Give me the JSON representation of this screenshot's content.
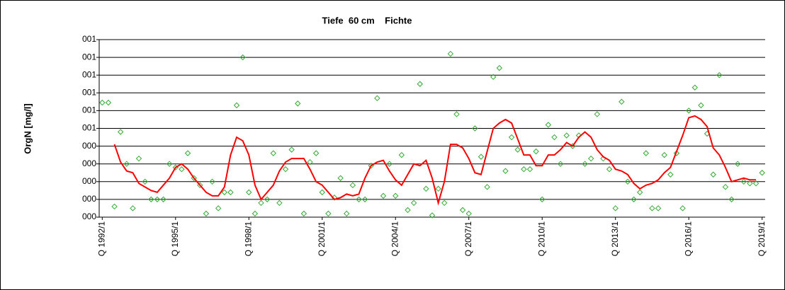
{
  "chart_data": {
    "type": "line",
    "title": "Tiefe  60 cm    Fichte",
    "y_label": "OrgN [mg/l]",
    "categories": [
      "Q 1992/1",
      null,
      null,
      null,
      null,
      null,
      null,
      null,
      null,
      null,
      null,
      null,
      "Q 1995/1",
      null,
      null,
      null,
      null,
      null,
      null,
      null,
      null,
      null,
      null,
      null,
      "Q 1998/1",
      null,
      null,
      null,
      null,
      null,
      null,
      null,
      null,
      null,
      null,
      null,
      "Q 2001/1",
      null,
      null,
      null,
      null,
      null,
      null,
      null,
      null,
      null,
      null,
      null,
      "Q 2004/1",
      null,
      null,
      null,
      null,
      null,
      null,
      null,
      null,
      null,
      null,
      null,
      "Q 2007/1",
      null,
      null,
      null,
      null,
      null,
      null,
      null,
      null,
      null,
      null,
      null,
      "Q 2010/1",
      null,
      null,
      null,
      null,
      null,
      null,
      null,
      null,
      null,
      null,
      null,
      "Q 2013/1",
      null,
      null,
      null,
      null,
      null,
      null,
      null,
      null,
      null,
      null,
      null,
      "Q 2016/1",
      null,
      null,
      null,
      null,
      null,
      null,
      null,
      null,
      null,
      null,
      null,
      "Q 2019/1"
    ],
    "series": [
      {
        "mode": "markers",
        "color": "#33aa33",
        "values": [
          0.645,
          0.645,
          0.06,
          0.48,
          0.3,
          0.05,
          0.33,
          0.2,
          0.1,
          0.1,
          0.1,
          0.3,
          0.28,
          0.27,
          0.36,
          0.22,
          0.18,
          0.02,
          0.2,
          0.05,
          0.14,
          0.14,
          0.63,
          0.9,
          0.14,
          0.02,
          0.08,
          0.1,
          0.36,
          0.08,
          0.27,
          0.38,
          0.64,
          0.02,
          0.31,
          0.36,
          0.14,
          0.02,
          0.11,
          0.22,
          0.02,
          0.18,
          0.1,
          0.1,
          0.29,
          0.67,
          0.12,
          0.3,
          0.12,
          0.35,
          0.04,
          0.08,
          0.75,
          0.16,
          0.01,
          0.16,
          0.08,
          0.92,
          0.58,
          0.04,
          0.02,
          0.5,
          0.34,
          0.17,
          0.79,
          0.84,
          0.26,
          0.45,
          0.38,
          0.27,
          0.27,
          0.37,
          0.1,
          0.52,
          0.45,
          0.3,
          0.46,
          0.4,
          0.46,
          0.3,
          0.33,
          0.58,
          0.33,
          0.27,
          0.05,
          0.65,
          0.2,
          0.1,
          0.14,
          0.36,
          0.05,
          0.05,
          0.35,
          0.24,
          0.36,
          0.05,
          0.6,
          0.73,
          0.63,
          0.47,
          0.24,
          0.8,
          0.17,
          0.1,
          0.3,
          0.2,
          0.19,
          0.19,
          0.25
        ]
      },
      {
        "mode": "line",
        "color": "#ff0000",
        "values": [
          null,
          null,
          0.41,
          0.31,
          0.26,
          0.25,
          0.19,
          0.17,
          0.15,
          0.14,
          0.18,
          0.22,
          0.28,
          0.3,
          0.27,
          0.22,
          0.18,
          0.14,
          0.12,
          0.12,
          0.17,
          0.35,
          0.45,
          0.43,
          0.35,
          0.18,
          0.1,
          0.14,
          0.18,
          0.26,
          0.31,
          0.33,
          0.33,
          0.33,
          0.27,
          0.2,
          0.18,
          0.14,
          0.1,
          0.11,
          0.13,
          0.12,
          0.13,
          0.22,
          0.29,
          0.31,
          0.32,
          0.26,
          0.21,
          0.18,
          0.24,
          0.3,
          0.29,
          0.32,
          0.22,
          0.08,
          0.2,
          0.41,
          0.41,
          0.39,
          0.33,
          0.25,
          0.24,
          0.37,
          0.5,
          0.53,
          0.55,
          0.53,
          0.44,
          0.35,
          0.35,
          0.29,
          0.29,
          0.35,
          0.35,
          0.38,
          0.42,
          0.4,
          0.45,
          0.48,
          0.45,
          0.38,
          0.34,
          0.32,
          0.27,
          0.26,
          0.24,
          0.19,
          0.16,
          0.18,
          0.19,
          0.21,
          0.25,
          0.28,
          0.37,
          0.46,
          0.56,
          0.57,
          0.55,
          0.51,
          0.39,
          0.35,
          0.28,
          0.2,
          0.21,
          0.22,
          0.21,
          0.21,
          null
        ]
      }
    ],
    "ylim": [
      0,
      1
    ],
    "yticks": [
      {
        "value": 0,
        "label": "000"
      },
      {
        "value": 0.1,
        "label": "000"
      },
      {
        "value": 0.2,
        "label": "000"
      },
      {
        "value": 0.3,
        "label": "000"
      },
      {
        "value": 0.4,
        "label": "000"
      },
      {
        "value": 0.5,
        "label": "001"
      },
      {
        "value": 0.6,
        "label": "001"
      },
      {
        "value": 0.7,
        "label": "001"
      },
      {
        "value": 0.8,
        "label": "001"
      },
      {
        "value": 0.9,
        "label": "001"
      },
      {
        "value": 1,
        "label": "001"
      }
    ],
    "grid": true
  }
}
